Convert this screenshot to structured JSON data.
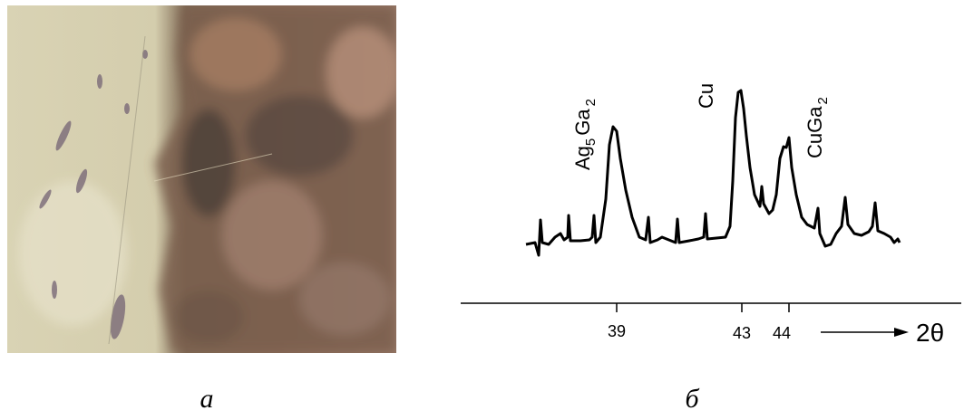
{
  "figure": {
    "panels": [
      {
        "label": "а"
      },
      {
        "label": "б",
        "peaks": [
          {
            "parts": [
              "Ag",
              "5",
              "Ga",
              "2"
            ]
          },
          {
            "parts": [
              "Cu"
            ]
          },
          {
            "parts": [
              "CuGa",
              "2"
            ]
          }
        ],
        "ticks": [
          "39",
          "43",
          "44"
        ],
        "axis_label": "2θ"
      }
    ]
  }
}
